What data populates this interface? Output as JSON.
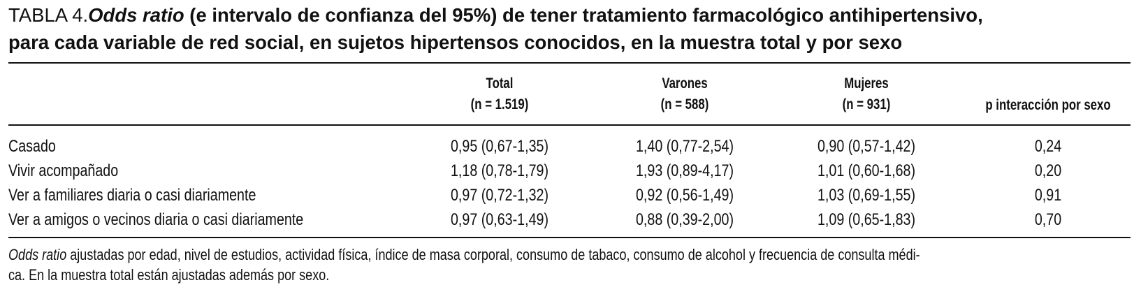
{
  "title": {
    "label": "TABLA 4.",
    "emph": "Odds ratio",
    "rest_line1": " (e intervalo de confianza del 95%) de tener tratamiento farmacológico antihipertensivo,",
    "rest_line2": "para cada variable de red social, en sujetos hipertensos conocidos, en la muestra total y por sexo"
  },
  "headers": {
    "total": {
      "name": "Total",
      "n": "(n = 1.519)"
    },
    "varones": {
      "name": "Varones",
      "n": "(n = 588)"
    },
    "mujeres": {
      "name": "Mujeres",
      "n": "(n = 931)"
    },
    "interaction": "p interacción por sexo"
  },
  "rows": [
    {
      "label": "Casado",
      "total": "0,95 (0,67-1,35)",
      "varones": "1,40 (0,77-2,54)",
      "mujeres": "0,90 (0,57-1,42)",
      "p": "0,24"
    },
    {
      "label": "Vivir acompañado",
      "total": "1,18 (0,78-1,79)",
      "varones": "1,93 (0,89-4,17)",
      "mujeres": "1,01 (0,60-1,68)",
      "p": "0,20"
    },
    {
      "label": "Ver a familiares diaria o casi diariamente",
      "total": "0,97 (0,72-1,32)",
      "varones": "0,92 (0,56-1,49)",
      "mujeres": "1,03 (0,69-1,55)",
      "p": "0,91"
    },
    {
      "label": "Ver a amigos o vecinos diaria o casi diariamente",
      "total": "0,97 (0,63-1,49)",
      "varones": "0,88 (0,39-2,00)",
      "mujeres": "1,09 (0,65-1,83)",
      "p": "0,70"
    }
  ],
  "footnote": {
    "emph": "Odds ratio",
    "line1": " ajustadas por edad, nivel de estudios, actividad física, índice de masa corporal, consumo de tabaco, consumo de alcohol y frecuencia de consulta médi-",
    "line2": "ca. En la muestra total están ajustadas además por sexo."
  }
}
